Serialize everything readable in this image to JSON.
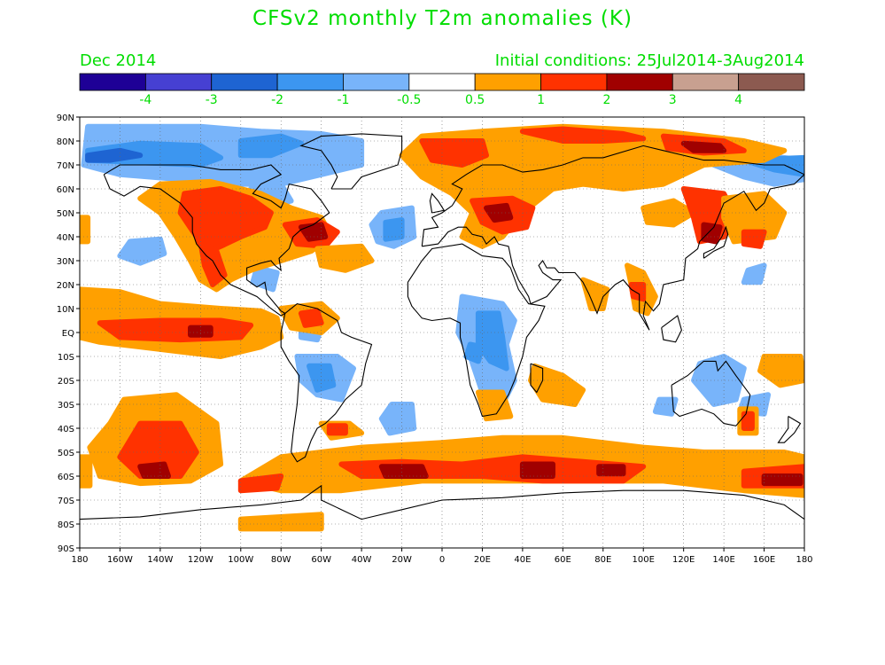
{
  "title": "CFSv2 monthly T2m anomalies (K)",
  "valid_month": "Dec 2014",
  "initial_conditions": "Initial conditions: 25Jul2014-3Aug2014",
  "colorbar": {
    "colors": [
      "#1e0096",
      "#4640d2",
      "#1e64d2",
      "#3c96f0",
      "#78b4fa",
      "#ffffff",
      "#ffa000",
      "#ff3200",
      "#a00000",
      "#c8a090",
      "#8c5a50"
    ],
    "labels": [
      "-4",
      "-3",
      "-2",
      "-1",
      "-0.5",
      "0.5",
      "1",
      "2",
      "3",
      "4"
    ]
  },
  "map": {
    "lat_labels": [
      "90N",
      "80N",
      "70N",
      "60N",
      "50N",
      "40N",
      "30N",
      "20N",
      "10N",
      "EQ",
      "10S",
      "20S",
      "30S",
      "40S",
      "50S",
      "60S",
      "70S",
      "80S",
      "90S"
    ],
    "lon_labels": [
      "180",
      "160W",
      "140W",
      "120W",
      "100W",
      "80W",
      "60W",
      "40W",
      "20W",
      "0",
      "20E",
      "40E",
      "60E",
      "80E",
      "100E",
      "120E",
      "140E",
      "160E",
      "180"
    ],
    "colors": {
      "orange": "#ffa000",
      "red": "#ff3200",
      "darkred": "#a00000",
      "lightblue": "#78b4fa",
      "blue": "#3c96f0",
      "darkblue": "#1e64d2"
    }
  }
}
